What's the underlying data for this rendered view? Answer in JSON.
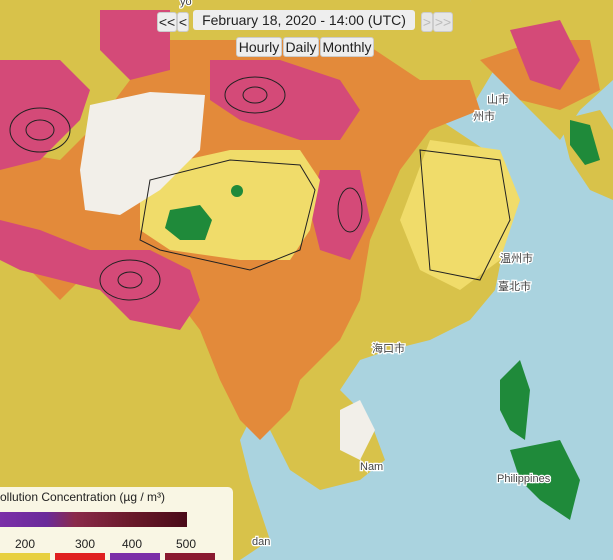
{
  "controls": {
    "first": "<<",
    "prev": "<",
    "date": "February 18, 2020 - 14:00 (UTC)",
    "next": ">",
    "last": ">>"
  },
  "views": [
    "Hourly",
    "Daily",
    "Monthly"
  ],
  "legend": {
    "title": "ollution Concentration (µg / m³)",
    "ticks": [
      200,
      300,
      400,
      500
    ]
  },
  "places": [
    "山市",
    "州市",
    "温州市",
    "臺北市",
    "海口市",
    "Nam",
    "Philippines",
    "dan",
    "yo"
  ]
}
